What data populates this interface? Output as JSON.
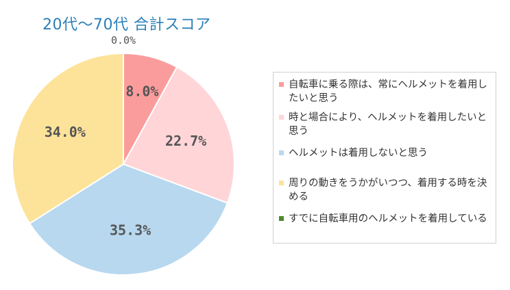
{
  "chart_data": {
    "type": "pie",
    "title": "20代～70代 合計スコア",
    "slices": [
      {
        "label": "自転車に乗る際は、常にヘルメットを着用したいと思う",
        "value": 8.0,
        "display": "8.0%",
        "color": "#fb9c9c"
      },
      {
        "label": "時と場合により、ヘルメットを着用したいと思う",
        "value": 22.7,
        "display": "22.7%",
        "color": "#ffd5d8"
      },
      {
        "label": "ヘルメットは着用しないと思う",
        "value": 35.3,
        "display": "35.3%",
        "color": "#b7d8ef"
      },
      {
        "label": "周りの動きをうかがいつつ、着用する時を決める",
        "value": 34.0,
        "display": "34.0%",
        "color": "#fde39a"
      },
      {
        "label": "すでに自転車用のヘルメットを着用している",
        "value": 0.0,
        "display": "0.0%",
        "color": "#4f8a2c"
      }
    ],
    "legend_position": "right"
  }
}
